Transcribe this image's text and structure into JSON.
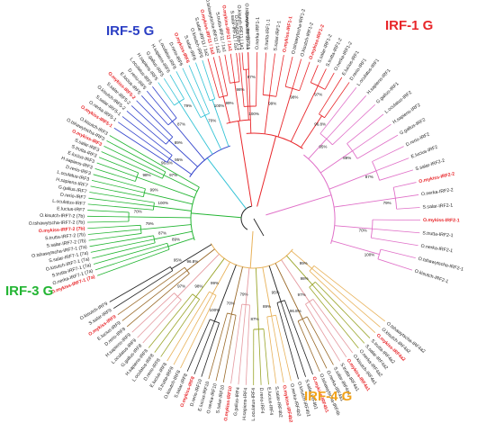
{
  "group_labels": {
    "irf1": {
      "text": "IRF-1 G",
      "color": "#e8262a"
    },
    "irf5": {
      "text": "IRF-5 G",
      "color": "#2b3fc4"
    },
    "irf3": {
      "text": "IRF-3 G",
      "color": "#23b533"
    },
    "irf4": {
      "text": "IRF-4 G",
      "color": "#f2a31b"
    }
  },
  "colors": {
    "default": "#222222",
    "highlight": "#e8262a",
    "irf1": "#e8262a",
    "irf2": "#e070c8",
    "irf5": "#3344cc",
    "irf5_stem": "#34c3d6",
    "irf3": "#23b533",
    "irf4": "#e8b25a",
    "irf4_dark": "#9a6a2a",
    "irf4_pink": "#e59aa0",
    "irf4_olive": "#9aa52a"
  },
  "bootstrap_values": [
    "100%",
    "99%",
    "98%",
    "97%",
    "96.8%",
    "95%",
    "89%",
    "87%",
    "79%",
    "70%"
  ],
  "clades": [
    {
      "key": "irf1",
      "color": "irf1",
      "leaves": [
        {
          "text": "O.kisutch-IRF1-1"
        },
        {
          "text": "O.tshawytscha-IRF1-1"
        },
        {
          "text": "O.nerka-IRF1-1"
        },
        {
          "text": "S.trutta-IRF1-1"
        },
        {
          "text": "S.salar-IRF1-1"
        },
        {
          "text": "O.mykiss-IRF1-1",
          "hl": true
        },
        {
          "text": "O.tshawytscha-IRF1-2"
        },
        {
          "text": "O.kisutch-IRF1-2"
        },
        {
          "text": "O.mykiss-IRF1-2",
          "hl": true
        },
        {
          "text": "S.salar-IRF1-2"
        },
        {
          "text": "S.trutta-IRF1-2"
        },
        {
          "text": "O.nerka-IRF1-2"
        },
        {
          "text": "E.lucius-IRF1"
        },
        {
          "text": "D.rerio-IRF1"
        }
      ]
    },
    {
      "key": "irf2",
      "color": "irf2",
      "leaves": [
        {
          "text": "L.oculatus-IRF1"
        },
        {
          "text": "H.sapiens-IRF1"
        },
        {
          "text": "G.gallus-IRF1"
        },
        {
          "text": "L.oculatus-IRF2"
        },
        {
          "text": "H.sapiens-IRF2"
        },
        {
          "text": "G.gallus-IRF2"
        },
        {
          "text": "D.rerio-IRF2"
        },
        {
          "text": "E.lucius-IRF2"
        },
        {
          "text": "S.salar-IRF2-2"
        },
        {
          "text": "O.mykiss-IRF2-2",
          "hl": true
        },
        {
          "text": "O.nerka-IRF2-2"
        },
        {
          "text": "S.salar-IRF2-1"
        },
        {
          "text": "O.mykiss-IRF2-1",
          "hl": true
        },
        {
          "text": "S.trutta-IRF2-1"
        },
        {
          "text": "O.nerka-IRF2-1"
        },
        {
          "text": "O.tshawytscha-IRF2-1"
        },
        {
          "text": "O.kisutch-IRF2-1"
        }
      ]
    },
    {
      "key": "irf4",
      "color": "irf4",
      "leaves": [
        {
          "text": "O.tshawytscha-IRF4a2"
        },
        {
          "text": "O.kisutch-IRF4a2"
        },
        {
          "text": "O.mykiss-IRF4a2",
          "hl": true
        },
        {
          "text": "S.trutta-IRF4a2"
        },
        {
          "text": "S.salar-IRF4a2"
        },
        {
          "text": "O.nerka-IRF4a2"
        },
        {
          "text": "O.kisutch-IRF4a1"
        },
        {
          "text": "O.mykiss-IRF4a1",
          "hl": true
        },
        {
          "text": "S.trutta-IRF4a1"
        },
        {
          "text": "S.salar-IRF4a1"
        },
        {
          "text": "O.nerka-IRF4a1"
        },
        {
          "text": "O.tshawytscha-IRF4b"
        },
        {
          "text": "O.mykiss-IRF4b1",
          "hl": true
        },
        {
          "text": "S.salar-IRF4b1"
        },
        {
          "text": "O.kisutch-IRF4b1"
        },
        {
          "text": "O.nerka-IRF4b2"
        },
        {
          "text": "O.mykiss-IRF4b2",
          "hl": true
        },
        {
          "text": "S.salar-IRF4b2"
        },
        {
          "text": "E.lucius-IRF4"
        },
        {
          "text": "D.rerio-IRF4"
        },
        {
          "text": "L.oculatus-IRF4"
        },
        {
          "text": "H.sapiens-IRF4"
        },
        {
          "text": "G.gallus-IRF4"
        },
        {
          "text": "O.mykiss-IRF10",
          "hl": true
        },
        {
          "text": "S.salar-IRF10"
        },
        {
          "text": "O.nerka-IRF10"
        },
        {
          "text": "E.lucius-IRF10"
        },
        {
          "text": "D.rerio-IRF10"
        },
        {
          "text": "O.mykiss-IRF8",
          "hl": true
        },
        {
          "text": "S.salar-IRF8"
        },
        {
          "text": "O.kisutch-IRF8"
        },
        {
          "text": "S.trutta-IRF8"
        },
        {
          "text": "E.lucius-IRF8"
        },
        {
          "text": "D.rerio-IRF8"
        },
        {
          "text": "L.oculatus-IRF8"
        },
        {
          "text": "H.sapiens-IRF8"
        },
        {
          "text": "G.gallus-IRF8"
        },
        {
          "text": "L.oculatus-IRF9"
        },
        {
          "text": "H.sapiens-IRF9"
        },
        {
          "text": "D.rerio-IRF9"
        },
        {
          "text": "E.lucius-IRF9"
        },
        {
          "text": "O.mykiss-IRF9",
          "hl": true
        },
        {
          "text": "S.salar-IRF9"
        },
        {
          "text": "O.kisutch-IRF9"
        }
      ]
    },
    {
      "key": "irf3",
      "color": "irf3",
      "leaves": [
        {
          "text": "O.mykiss-IRF7-1 (7a)",
          "hl": true
        },
        {
          "text": "O.nerka-IRF7-1 (7a)"
        },
        {
          "text": "S.trutta-IRF7-1 (7a)"
        },
        {
          "text": "O.kisutch-IRF7-1 (7a)"
        },
        {
          "text": "S.salar-IRF7-1 (7a)"
        },
        {
          "text": "O.tshawytscha-IRF7-1 (7a)"
        },
        {
          "text": "S.salar-IRF7-2 (7b)"
        },
        {
          "text": "S.trutta-IRF7-2 (7b)"
        },
        {
          "text": "O.mykiss-IRF7-2 (7b)",
          "hl": true
        },
        {
          "text": "O.tshawytscha-IRF7-2 (7b)"
        },
        {
          "text": "O.kisutch-IRF7-2 (7b)"
        },
        {
          "text": "E.lucius-IRF7"
        },
        {
          "text": "L.oculatus-IRF7"
        },
        {
          "text": "D.rerio-IRF7"
        },
        {
          "text": "G.gallus-IRF7"
        },
        {
          "text": "H.sapiens-IRF7"
        },
        {
          "text": "L.oculatus-IRF3"
        },
        {
          "text": "D.rerio-IRF3"
        },
        {
          "text": "H.sapiens-IRF3"
        },
        {
          "text": "E.lucius-IRF3"
        },
        {
          "text": "S.trutta-IRF3"
        },
        {
          "text": "S.salar-IRF3"
        },
        {
          "text": "O.mykiss-IRF3",
          "hl": true
        },
        {
          "text": "O.tshawytscha-IRF3"
        },
        {
          "text": "O.kisutch-IRF3"
        }
      ]
    },
    {
      "key": "irf5",
      "color": "irf5",
      "leaves": [
        {
          "text": "O.mykiss-IRF5-1",
          "hl": true
        },
        {
          "text": "O.nerka-IRF5-1"
        },
        {
          "text": "S.salar-IRF5-1"
        },
        {
          "text": "O.kisutch-IRF5-2"
        },
        {
          "text": "S.salar-IRF5-2"
        },
        {
          "text": "O.mykiss-IRF5-2",
          "hl": true
        },
        {
          "text": "E.lucius-IRF5"
        },
        {
          "text": "D.rerio-IRF5"
        },
        {
          "text": "L.oculatus-IRF5"
        },
        {
          "text": "H.sapiens-IRF5"
        },
        {
          "text": "G.gallus-IRF5"
        },
        {
          "text": "H.sapiens-IRF6"
        },
        {
          "text": "L.oculatus-IRF6"
        },
        {
          "text": "D.rerio-IRF6"
        },
        {
          "text": "O.mykiss-IRF6",
          "hl": true
        },
        {
          "text": "S.salar-IRF6"
        },
        {
          "text": "O.kisutch-IRF6"
        }
      ]
    },
    {
      "key": "irf11",
      "color": "irf1",
      "leaves": [
        {
          "text": "S.salar-IRF11 / 1a2"
        },
        {
          "text": "O.mykiss-IRF11 / 1a2",
          "hl": true
        },
        {
          "text": "O.tshawytscha-IRF11 / 1a2"
        },
        {
          "text": "S.trutta-IRF11 / 1a1"
        },
        {
          "text": "O.mykiss-IRF11 / 1a1",
          "hl": true
        },
        {
          "text": "S.salar-IRF11 / 1a1"
        },
        {
          "text": "O.kisutch-IRF11 / 1a1"
        },
        {
          "text": "D.rerio-IRF11 / 1a"
        }
      ]
    }
  ]
}
